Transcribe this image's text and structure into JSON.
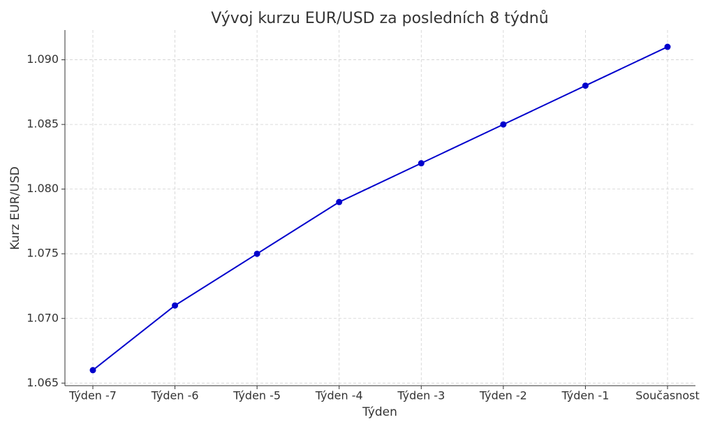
{
  "chart_data": {
    "type": "line",
    "title": "Vývoj kurzu EUR/USD za posledních 8 týdnů",
    "x_label": "Týden",
    "y_label": "Kurz EUR/USD",
    "categories": [
      "Týden -7",
      "Týden -6",
      "Týden -5",
      "Týden -4",
      "Týden -3",
      "Týden -2",
      "Týden -1",
      "Současnost"
    ],
    "series": [
      {
        "name": "EUR/USD",
        "color": "#0000cc",
        "values": [
          1.066,
          1.071,
          1.075,
          1.079,
          1.082,
          1.085,
          1.088,
          1.091
        ]
      }
    ],
    "ylim": [
      1.0648,
      1.0923
    ],
    "yticks": [
      1.065,
      {
        "value": 1.07,
        "label": "1.070"
      },
      1.075,
      {
        "value": 1.08,
        "label": "1.080"
      },
      1.085,
      {
        "value": 1.09,
        "label": "1.090"
      }
    ],
    "grid": true
  }
}
